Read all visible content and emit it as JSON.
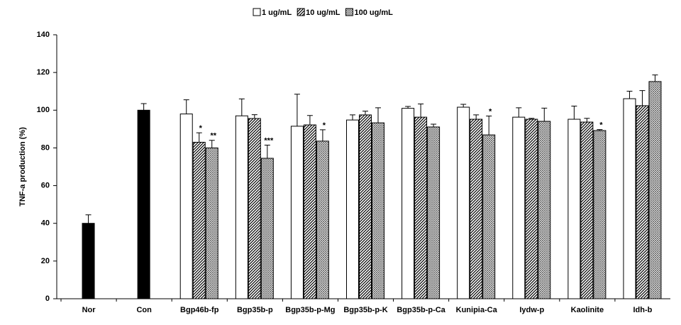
{
  "chart_data": {
    "type": "bar",
    "ylabel": "TNF-a production  (%)",
    "categories": [
      "Nor",
      "Con",
      "Bgp46b-fp",
      "Bgp35b-p",
      "Bgp35b-p-Mg",
      "Bgp35b-p-K",
      "Bgp35b-p-Ca",
      "Kunipia-Ca",
      "Iydw-p",
      "Kaolinite",
      "Idh-b"
    ],
    "series": [
      {
        "color": "#000000",
        "pattern": "solid",
        "values": [
          40,
          100,
          null,
          null,
          null,
          null,
          null,
          null,
          null,
          null,
          null
        ],
        "errors": [
          4.5,
          3.5,
          null,
          null,
          null,
          null,
          null,
          null,
          null,
          null,
          null
        ]
      },
      {
        "name": "1 ug/mL",
        "color": "#ffffff",
        "pattern": "solid",
        "values": [
          null,
          null,
          98,
          97,
          91.5,
          94.8,
          101,
          101.6,
          96.3,
          95.2,
          106.1
        ],
        "errors": [
          null,
          null,
          7.5,
          9,
          17,
          2.7,
          1,
          1.5,
          5,
          7,
          4
        ]
      },
      {
        "name": "10 ug/mL",
        "color": "#ffffff",
        "pattern": "diagonal",
        "values": [
          null,
          null,
          83,
          95.6,
          92.2,
          97.5,
          96.3,
          95.2,
          95.2,
          93.7,
          102.4
        ],
        "errors": [
          null,
          null,
          5,
          2,
          5,
          2,
          7,
          2.3,
          0.5,
          2,
          8
        ],
        "labels": [
          null,
          null,
          "*",
          null,
          null,
          null,
          null,
          null,
          null,
          null,
          null
        ]
      },
      {
        "name": "100 ug/mL",
        "color": "#ffffff",
        "pattern": "crosshatch",
        "values": [
          null,
          null,
          80,
          74.5,
          83.6,
          93.3,
          91.1,
          86.9,
          94.1,
          89.2,
          115.2
        ],
        "errors": [
          null,
          null,
          4,
          7,
          6,
          8,
          1.5,
          10,
          7,
          0.5,
          3.5
        ],
        "labels": [
          null,
          null,
          "**",
          "***",
          "*",
          null,
          null,
          "*",
          null,
          "*",
          null
        ]
      }
    ],
    "ylim": [
      0,
      140
    ],
    "yticks": [
      0,
      20,
      40,
      60,
      80,
      100,
      120,
      140
    ],
    "grid": false,
    "legend": "top"
  }
}
